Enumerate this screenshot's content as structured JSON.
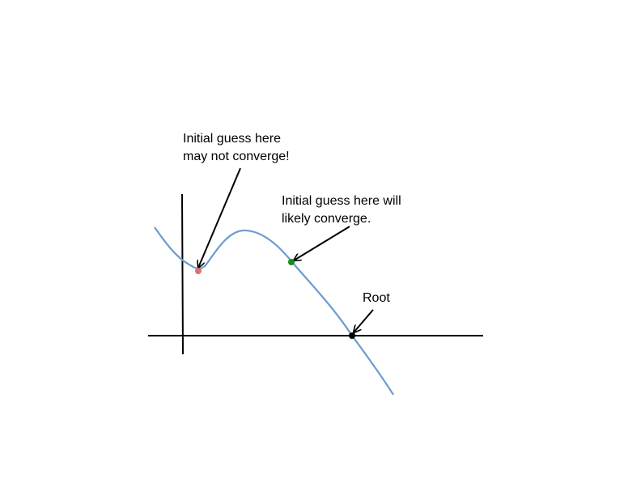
{
  "annotations": {
    "bad_guess": {
      "line1": "Initial guess here",
      "line2": "may not converge!"
    },
    "good_guess": {
      "line1": "Initial guess here will",
      "line2": "likely converge."
    },
    "root": {
      "text": "Root"
    }
  },
  "colors": {
    "curve": "#6a9bd1",
    "axes": "#000000",
    "arrows": "#000000",
    "bad_guess_point": "#e07070",
    "good_guess_point": "#1a8a1a",
    "root_point": "#000000"
  }
}
